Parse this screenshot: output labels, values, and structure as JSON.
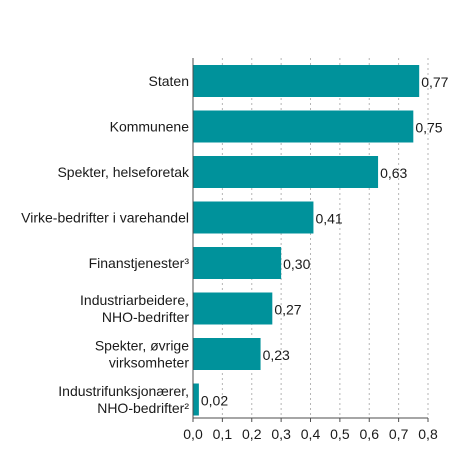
{
  "chart_data": {
    "type": "bar",
    "orientation": "horizontal",
    "categories": [
      [
        "Staten"
      ],
      [
        "Kommunene"
      ],
      [
        "Spekter, helseforetak"
      ],
      [
        "Virke-bedrifter i varehandel"
      ],
      [
        "Finanstjenester³"
      ],
      [
        "Industriarbeidere,",
        "NHO-bedrifter"
      ],
      [
        "Spekter, øvrige",
        "virksomheter"
      ],
      [
        "Industrifunksjonærer,",
        "NHO-bedrifter²"
      ]
    ],
    "values": [
      0.77,
      0.75,
      0.63,
      0.41,
      0.3,
      0.27,
      0.23,
      0.02
    ],
    "value_labels": [
      "0,77",
      "0,75",
      "0,63",
      "0,41",
      "0,30",
      "0,27",
      "0,23",
      "0,02"
    ],
    "xlim": [
      0,
      0.8
    ],
    "xticks": [
      0.0,
      0.1,
      0.2,
      0.3,
      0.4,
      0.5,
      0.6,
      0.7,
      0.8
    ],
    "xtick_labels": [
      "0,0",
      "0,1",
      "0,2",
      "0,3",
      "0,4",
      "0,5",
      "0,6",
      "0,7",
      "0,8"
    ],
    "grid": true,
    "bar_color": "#00929b",
    "title": "",
    "xlabel": "",
    "ylabel": ""
  }
}
